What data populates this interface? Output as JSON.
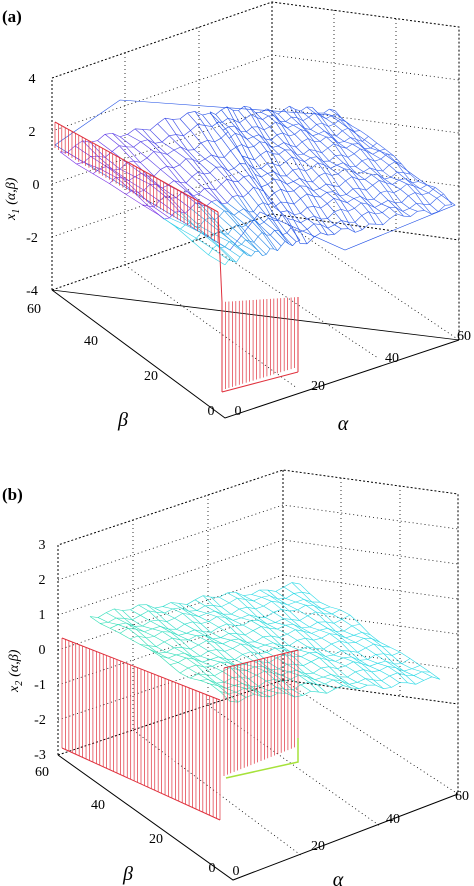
{
  "chart_data": [
    {
      "type": "surface",
      "panel_label": "(a)",
      "z_label_main": "x",
      "z_label_sub": "1",
      "z_label_rest": "(α,β)",
      "x_label": "α",
      "y_label": "β",
      "x_ticks": [
        "0",
        "20",
        "40",
        "60"
      ],
      "y_ticks": [
        "0",
        "20",
        "40",
        "60"
      ],
      "z_ticks": [
        "4",
        "2",
        "0",
        "-2",
        "-4"
      ],
      "xlim": [
        0,
        60
      ],
      "ylim": [
        0,
        60
      ],
      "zlim": [
        -4,
        4
      ],
      "grid": true,
      "colors": {
        "wall": "#e0303c",
        "surface_high": "#1f4fe6",
        "surface_low": "#2ed3e8",
        "ridge": "#7a2ee6"
      }
    },
    {
      "type": "surface",
      "panel_label": "(b)",
      "z_label_main": "x",
      "z_label_sub": "2",
      "z_label_rest": "(α,β)",
      "x_label": "α",
      "y_label": "β",
      "x_ticks": [
        "0",
        "20",
        "40",
        "60"
      ],
      "y_ticks": [
        "0",
        "20",
        "40",
        "60"
      ],
      "z_ticks": [
        "3",
        "2",
        "1",
        "0",
        "-1",
        "-2",
        "-3"
      ],
      "xlim": [
        0,
        60
      ],
      "ylim": [
        0,
        60
      ],
      "zlim": [
        -3,
        3
      ],
      "grid": true,
      "colors": {
        "wall": "#e0303c",
        "surface_high": "#2ad9e6",
        "surface_low": "#36e0a8",
        "edge": "#a6e23a"
      }
    }
  ]
}
